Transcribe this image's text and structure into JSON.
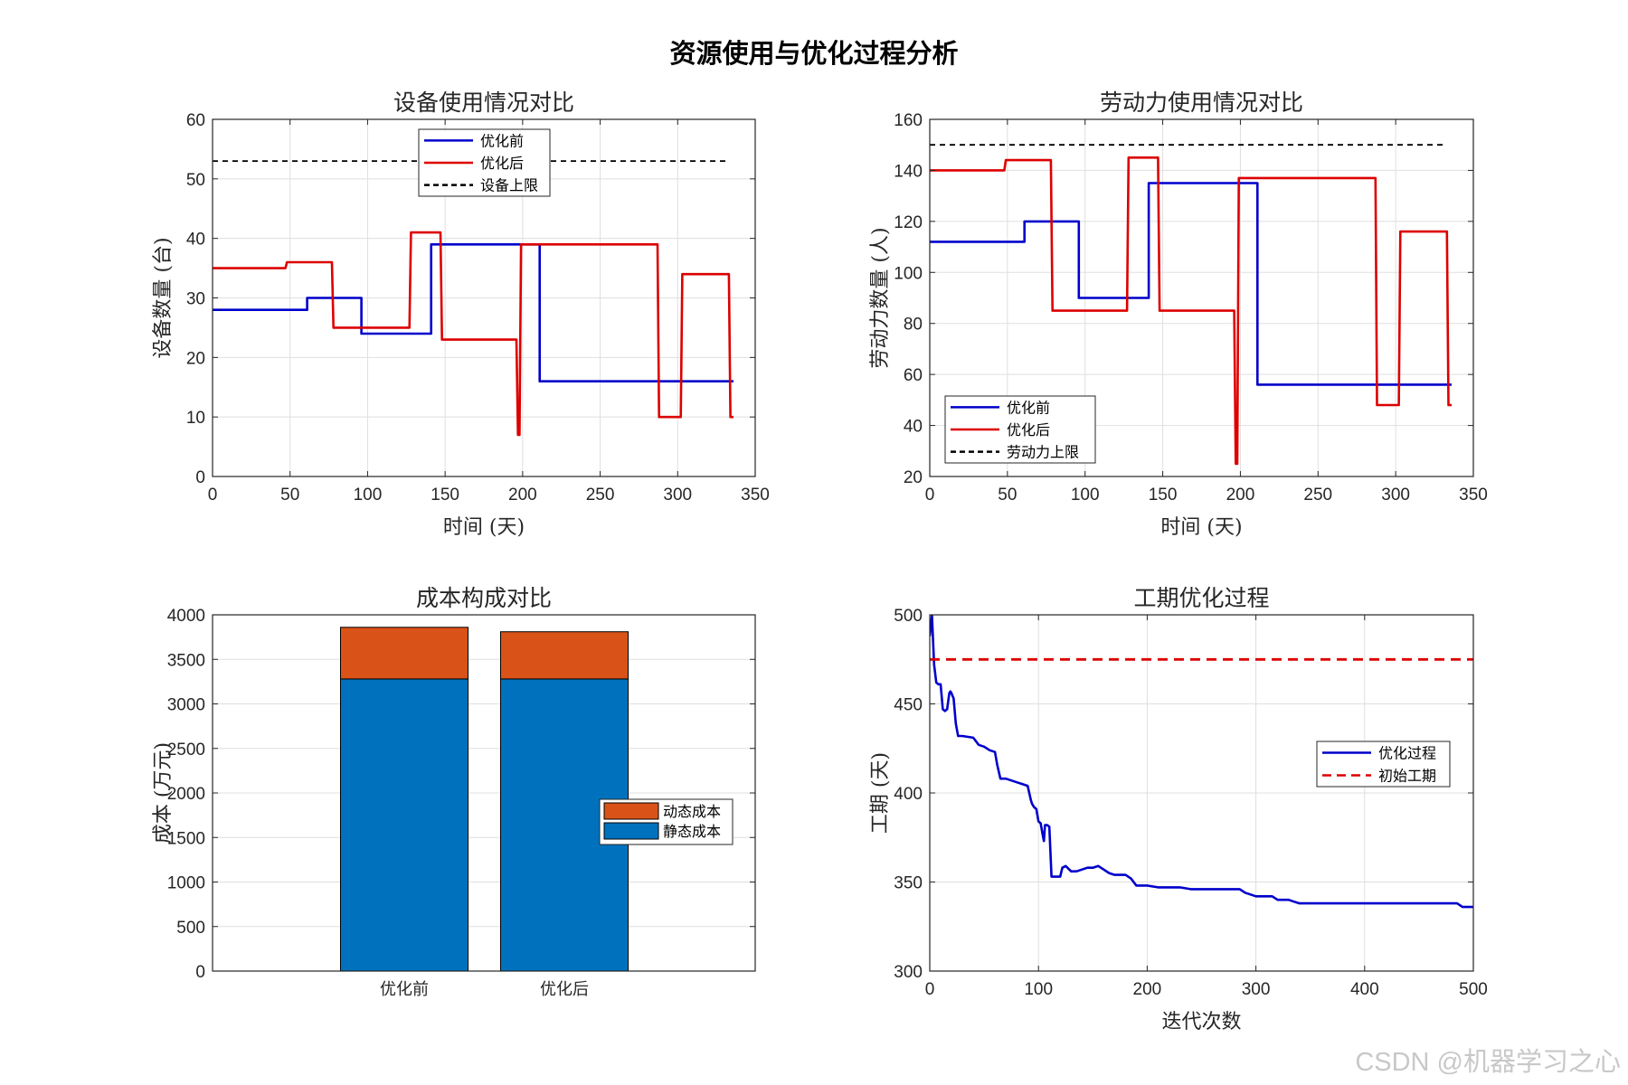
{
  "figure": {
    "title": "资源使用与优化过程分析",
    "watermark": "CSDN @机器学习之心"
  },
  "colors": {
    "blue": "#0000cc",
    "red": "#dd0000",
    "black": "#000000",
    "bar_static": "#0072bd",
    "bar_dynamic": "#d95319"
  },
  "chart_data": [
    {
      "type": "line",
      "title": "设备使用情况对比",
      "xlabel": "时间 (天)",
      "ylabel": "设备数量 (台)",
      "xlim": [
        0,
        350
      ],
      "ylim": [
        0,
        60
      ],
      "xticks": [
        0,
        50,
        100,
        150,
        200,
        250,
        300,
        350
      ],
      "yticks": [
        0,
        10,
        20,
        30,
        40,
        50,
        60
      ],
      "grid": true,
      "legend_position": "top-center",
      "series": [
        {
          "name": "优化前",
          "color": "#0000cc",
          "style": "solid",
          "x": [
            0,
            61,
            61,
            96,
            96,
            141,
            141,
            211,
            211,
            336
          ],
          "y": [
            28,
            28,
            30,
            30,
            24,
            24,
            39,
            39,
            16,
            16
          ]
        },
        {
          "name": "优化后",
          "color": "#dd0000",
          "style": "solid",
          "x": [
            0,
            47,
            48,
            77,
            78,
            127,
            128,
            147,
            148,
            196,
            197,
            198,
            199,
            200,
            287,
            288,
            302,
            303,
            333,
            334,
            336
          ],
          "y": [
            35,
            35,
            36,
            36,
            25,
            25,
            41,
            41,
            23,
            23,
            7,
            7,
            39,
            39,
            39,
            10,
            10,
            34,
            34,
            10,
            10
          ]
        },
        {
          "name": "设备上限",
          "color": "#000000",
          "style": "dashed",
          "x": [
            0,
            333
          ],
          "y": [
            53,
            53
          ]
        }
      ]
    },
    {
      "type": "line",
      "title": "劳动力使用情况对比",
      "xlabel": "时间 (天)",
      "ylabel": "劳动力数量 (人)",
      "xlim": [
        0,
        350
      ],
      "ylim": [
        20,
        160
      ],
      "xticks": [
        0,
        50,
        100,
        150,
        200,
        250,
        300,
        350
      ],
      "yticks": [
        20,
        40,
        60,
        80,
        100,
        120,
        140,
        160
      ],
      "grid": true,
      "legend_position": "bottom-left",
      "series": [
        {
          "name": "优化前",
          "color": "#0000cc",
          "style": "solid",
          "x": [
            0,
            61,
            61,
            96,
            96,
            141,
            141,
            211,
            211,
            336
          ],
          "y": [
            112,
            112,
            120,
            120,
            90,
            90,
            135,
            135,
            56,
            56
          ]
        },
        {
          "name": "优化后",
          "color": "#dd0000",
          "style": "solid",
          "x": [
            0,
            48,
            49,
            78,
            79,
            127,
            128,
            147,
            148,
            196,
            197,
            198,
            199,
            200,
            287,
            288,
            302,
            303,
            333,
            334,
            336
          ],
          "y": [
            140,
            140,
            144,
            144,
            85,
            85,
            145,
            145,
            85,
            85,
            25,
            25,
            137,
            137,
            137,
            48,
            48,
            116,
            116,
            48,
            48
          ]
        },
        {
          "name": "劳动力上限",
          "color": "#000000",
          "style": "dashed",
          "x": [
            0,
            333
          ],
          "y": [
            150,
            150
          ]
        }
      ]
    },
    {
      "type": "bar",
      "stacked": true,
      "title": "成本构成对比",
      "xlabel": "",
      "ylabel": "成本 (万元)",
      "ylim": [
        0,
        4000
      ],
      "yticks": [
        0,
        500,
        1000,
        1500,
        2000,
        2500,
        3000,
        3500,
        4000
      ],
      "grid": true,
      "legend_position": "right",
      "categories": [
        "优化前",
        "优化后"
      ],
      "series": [
        {
          "name": "静态成本",
          "color": "#0072bd",
          "values": [
            3280,
            3280
          ]
        },
        {
          "name": "动态成本",
          "color": "#d95319",
          "values": [
            580,
            530
          ]
        }
      ]
    },
    {
      "type": "line",
      "title": "工期优化过程",
      "xlabel": "迭代次数",
      "ylabel": "工期 (天)",
      "xlim": [
        0,
        500
      ],
      "ylim": [
        300,
        500
      ],
      "xticks": [
        0,
        100,
        200,
        300,
        400,
        500
      ],
      "yticks": [
        300,
        350,
        400,
        450,
        500
      ],
      "grid": true,
      "legend_position": "right",
      "series": [
        {
          "name": "优化过程",
          "color": "#0000cc",
          "style": "solid",
          "x": [
            0,
            2,
            4,
            6,
            8,
            10,
            12,
            14,
            16,
            18,
            19,
            20,
            22,
            24,
            26,
            27,
            28,
            29,
            30,
            40,
            45,
            50,
            55,
            60,
            62,
            65,
            70,
            75,
            80,
            85,
            90,
            93,
            94,
            96,
            98,
            100,
            102,
            104,
            105,
            106,
            108,
            110,
            112,
            115,
            120,
            122,
            125,
            130,
            135,
            140,
            145,
            150,
            155,
            160,
            165,
            170,
            175,
            180,
            185,
            190,
            195,
            200,
            210,
            220,
            230,
            240,
            250,
            260,
            270,
            280,
            285,
            290,
            300,
            310,
            315,
            320,
            330,
            335,
            340,
            350,
            360,
            370,
            380,
            390,
            400,
            420,
            440,
            460,
            480,
            485,
            490,
            500
          ],
          "y": [
            488,
            500,
            472,
            462,
            461,
            461,
            447,
            446,
            447,
            456,
            457,
            456,
            453,
            439,
            432,
            432,
            432,
            432,
            432,
            431,
            427,
            426,
            424,
            423,
            416,
            408,
            408,
            407,
            406,
            405,
            404,
            396,
            394,
            392,
            391,
            384,
            383,
            376,
            373,
            382,
            382,
            381,
            353,
            353,
            353,
            358,
            359,
            356,
            356,
            357,
            358,
            358,
            359,
            357,
            355,
            354,
            354,
            354,
            352,
            348,
            348,
            348,
            347,
            347,
            347,
            346,
            346,
            346,
            346,
            346,
            346,
            344,
            342,
            342,
            342,
            340,
            340,
            339,
            338,
            338,
            338,
            338,
            338,
            338,
            338,
            338,
            338,
            338,
            338,
            338,
            336,
            336
          ]
        },
        {
          "name": "初始工期",
          "color": "#dd0000",
          "style": "dashed",
          "x": [
            0,
            500
          ],
          "y": [
            475,
            475
          ]
        }
      ]
    }
  ]
}
